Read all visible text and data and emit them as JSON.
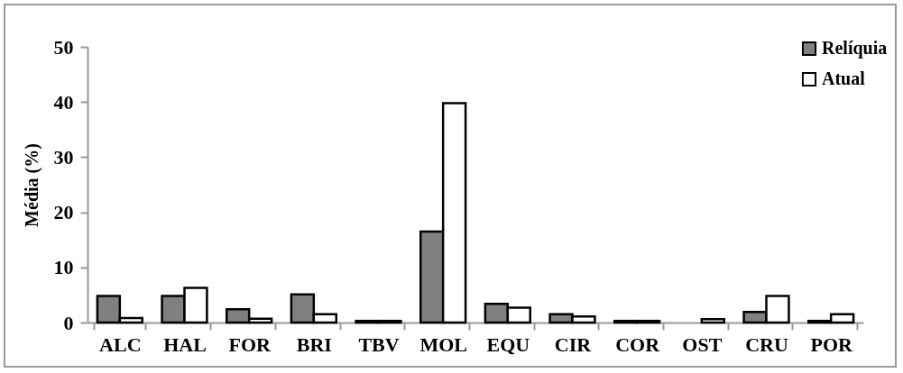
{
  "chart_data": {
    "type": "bar",
    "ylabel": "Média (%)",
    "categories": [
      "ALC",
      "HAL",
      "FOR",
      "BRI",
      "TBV",
      "MOL",
      "EQU",
      "CIR",
      "COR",
      "OST",
      "CRU",
      "POR"
    ],
    "series": [
      {
        "name": "Relíquia",
        "color": "#808080",
        "values": [
          4.8,
          4.8,
          2.4,
          5.1,
          0.3,
          16.5,
          3.4,
          1.5,
          0.3,
          null,
          1.9,
          0.3
        ]
      },
      {
        "name": "Atual",
        "color": "#ffffff",
        "values": [
          0.8,
          6.3,
          0.7,
          1.5,
          0.3,
          39.8,
          2.7,
          1.1,
          0.3,
          0.6,
          4.8,
          1.5
        ]
      }
    ],
    "ylim": [
      0,
      50
    ],
    "yticks": [
      0,
      10,
      20,
      30,
      40,
      50
    ],
    "grid": false,
    "legend": "top right"
  }
}
